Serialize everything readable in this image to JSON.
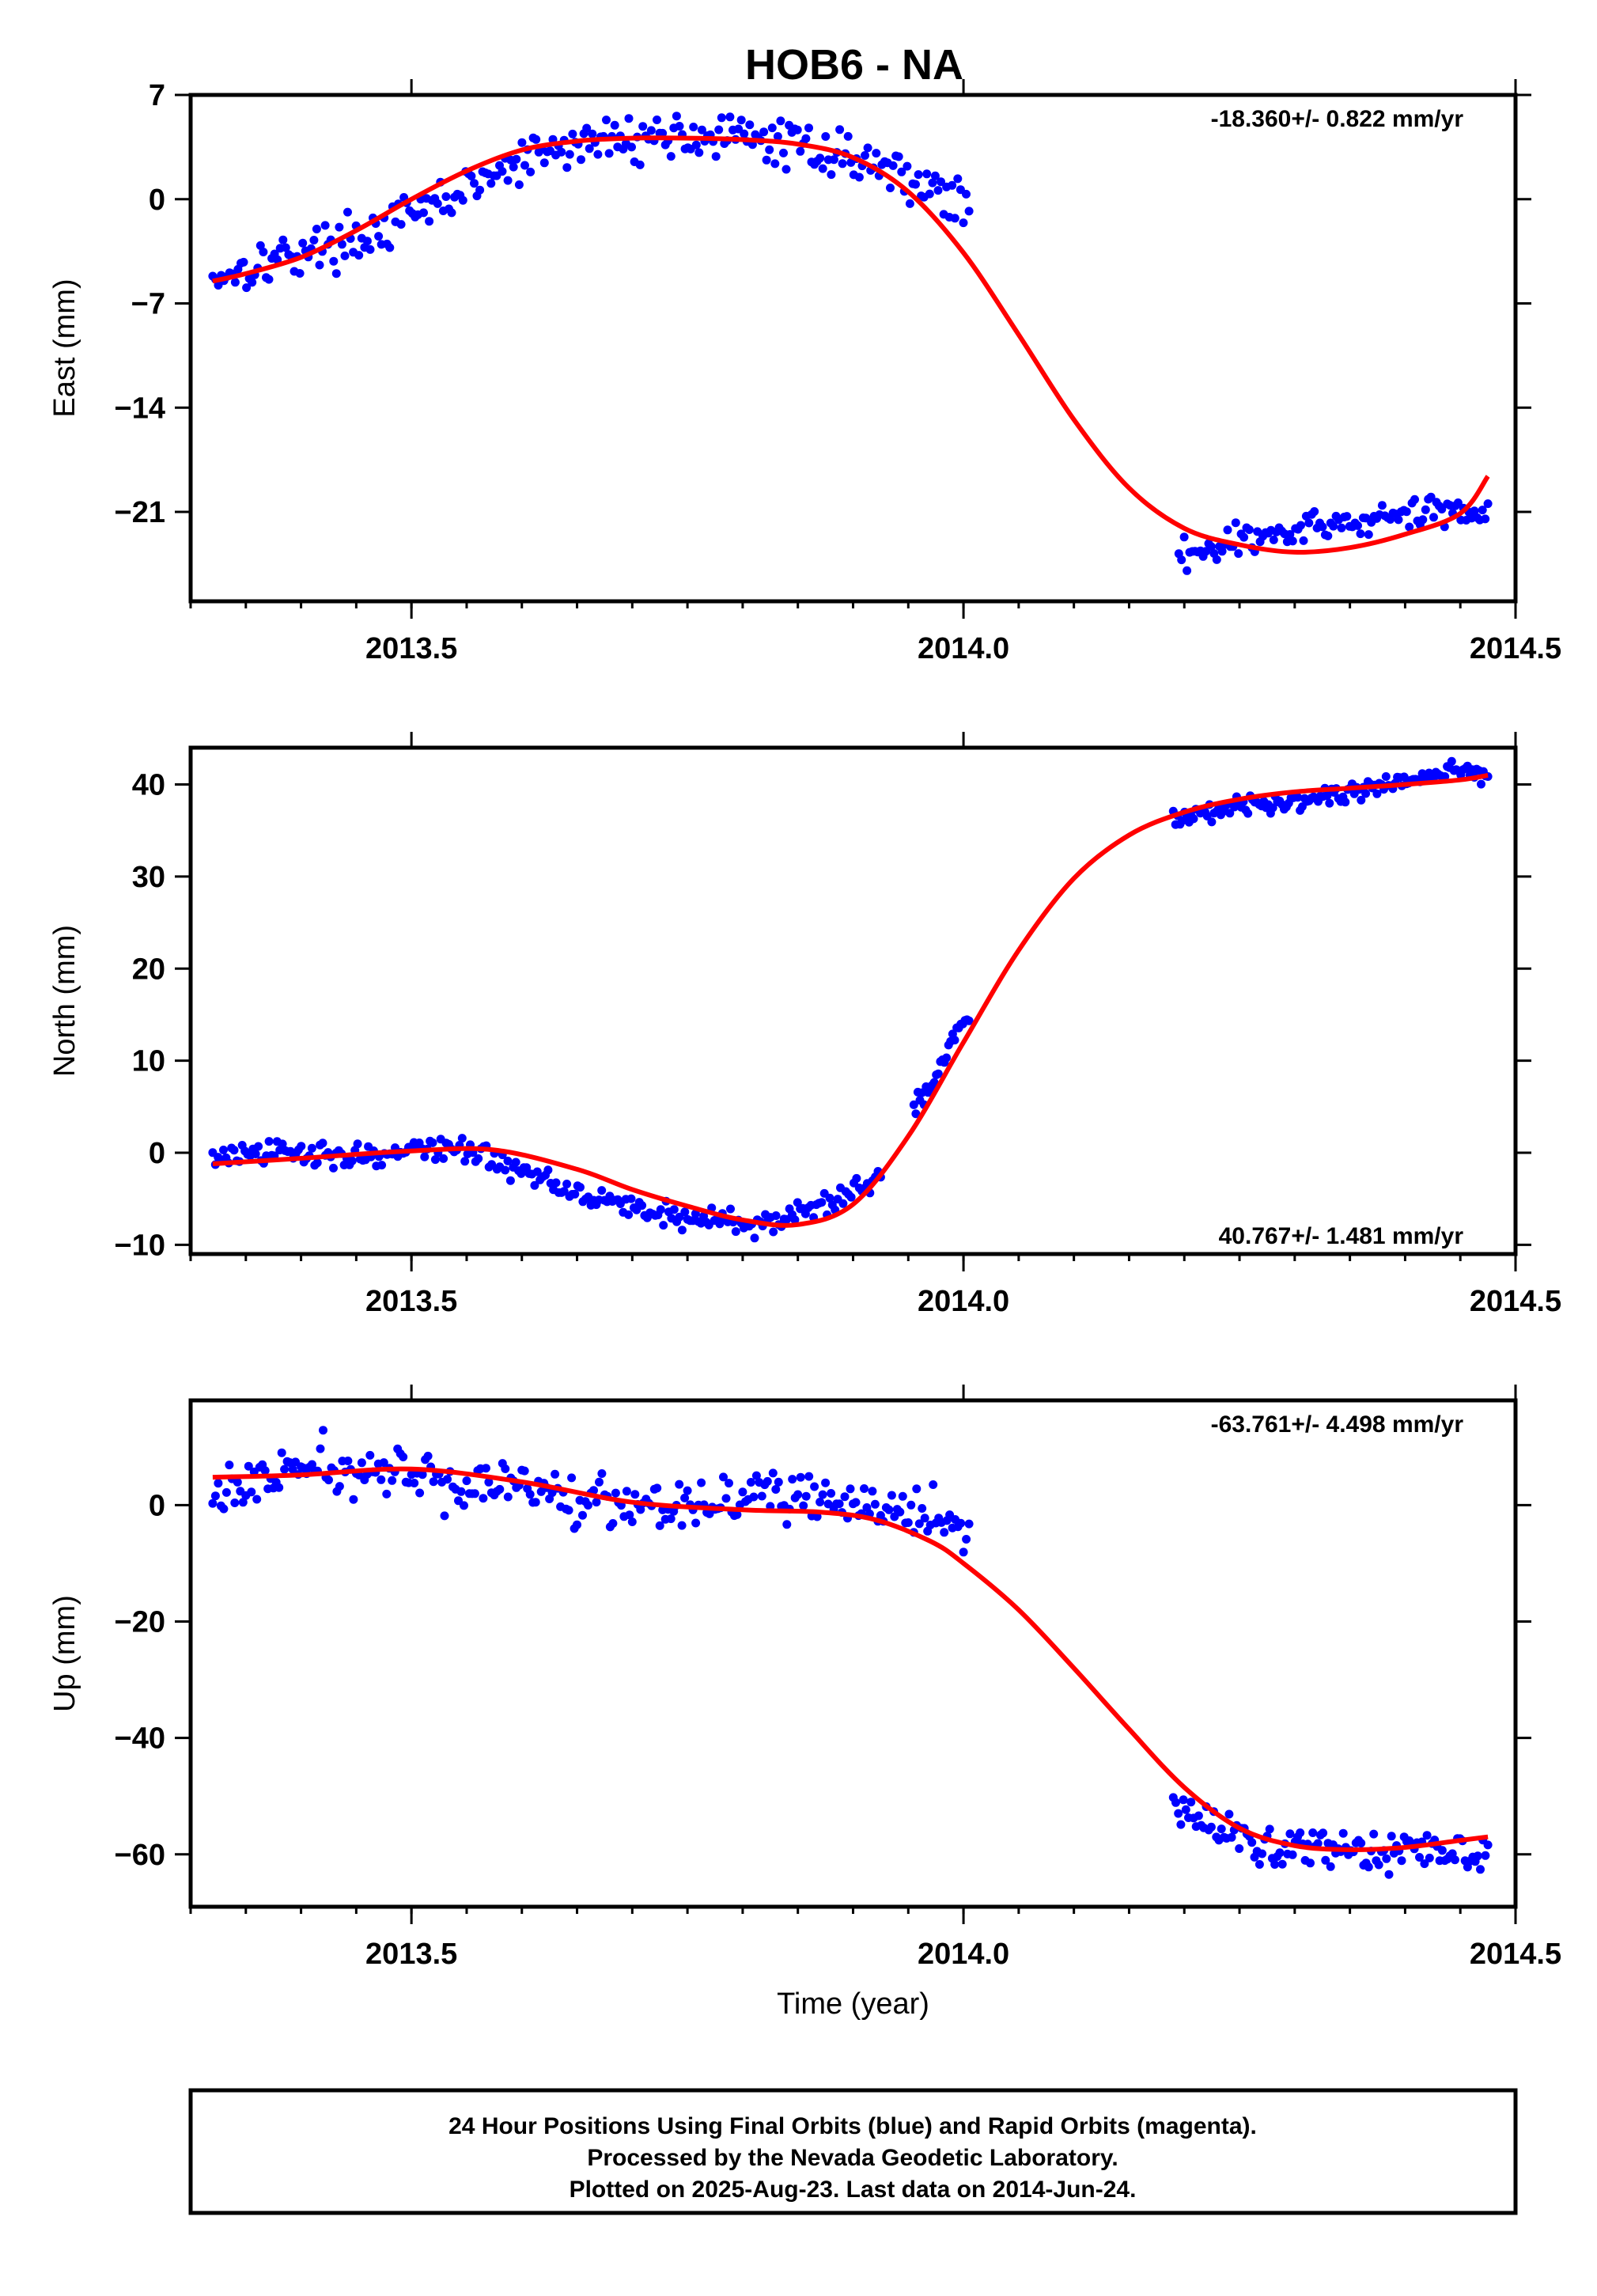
{
  "title": "HOB6 - NA",
  "footer": {
    "line1": "24 Hour Positions Using Final Orbits (blue) and Rapid Orbits (magenta).",
    "line2": "Processed by the Nevada Geodetic Laboratory.",
    "line3": "Plotted on 2025-Aug-23. Last data on 2014-Jun-24."
  },
  "colors": {
    "points": "#0000ff",
    "fit": "#ff0000",
    "axis": "#000000"
  },
  "chart_data": [
    {
      "type": "scatter",
      "ylabel": "East (mm)",
      "xlabel": "",
      "rate_label": "-18.360+/- 0.822 mm/yr",
      "xlim": [
        2013.3,
        2014.5
      ],
      "ylim": [
        -27,
        7
      ],
      "xticks": [
        2013.5,
        2014.0,
        2014.5
      ],
      "xtick_labels": [
        "2013.5",
        "2014.0",
        "2014.5"
      ],
      "yticks": [
        7,
        0,
        -7,
        -14,
        -21
      ],
      "ytick_labels": [
        "7",
        "0",
        "−7",
        "−14",
        "−21"
      ],
      "segments": [
        {
          "x0": 2013.32,
          "x1": 2014.005,
          "y": [
            -5.2,
            -4.5,
            -3.8,
            -3.2,
            -2.6,
            -1.8,
            -0.6,
            0.6,
            1.8,
            2.9,
            3.6,
            4.0,
            4.2,
            4.3,
            4.2,
            4.0,
            3.7,
            3.3,
            2.7,
            1.8,
            0.8,
            -0.8
          ],
          "jitter": 1.2,
          "count": 270
        },
        {
          "x0": 2014.195,
          "x1": 2014.475,
          "y": [
            -23.8,
            -23.3,
            -22.9,
            -22.6,
            -22.3,
            -21.9,
            -21.6,
            -21.4,
            -21.1,
            -20.8,
            -20.9
          ],
          "jitter": 0.9,
          "count": 115
        }
      ],
      "fit": {
        "x": [
          2013.32,
          2013.35,
          2013.4,
          2013.45,
          2013.5,
          2013.55,
          2013.6,
          2013.65,
          2013.7,
          2013.75,
          2013.8,
          2013.85,
          2013.9,
          2013.95,
          2014.0,
          2014.05,
          2014.1,
          2014.15,
          2014.2,
          2014.25,
          2014.3,
          2014.35,
          2014.4,
          2014.45,
          2014.475
        ],
        "y": [
          -5.5,
          -5.0,
          -3.9,
          -2.1,
          0.0,
          1.9,
          3.3,
          3.9,
          4.1,
          4.1,
          4.0,
          3.7,
          2.8,
          0.5,
          -3.6,
          -9.1,
          -14.8,
          -19.4,
          -22.1,
          -23.2,
          -23.7,
          -23.4,
          -22.5,
          -21.1,
          -18.6
        ]
      }
    },
    {
      "type": "scatter",
      "ylabel": "North (mm)",
      "xlabel": "",
      "rate_label": "40.767+/- 1.481 mm/yr",
      "xlim": [
        2013.3,
        2014.5
      ],
      "ylim": [
        -11,
        44
      ],
      "xticks": [
        2013.5,
        2014.0,
        2014.5
      ],
      "xtick_labels": [
        "2013.5",
        "2014.0",
        "2014.5"
      ],
      "yticks": [
        40,
        30,
        20,
        10,
        0,
        -10
      ],
      "ytick_labels": [
        "40",
        "30",
        "20",
        "10",
        "0",
        "−10"
      ],
      "segments": [
        {
          "x0": 2013.32,
          "x1": 2013.925,
          "y": [
            -0.5,
            -0.3,
            -0.1,
            0.0,
            -0.2,
            -0.3,
            0.0,
            0.6,
            0.4,
            -1.2,
            -2.3,
            -3.5,
            -4.7,
            -5.7,
            -6.6,
            -7.1,
            -7.4,
            -7.6,
            -7.3,
            -6.2,
            -4.2,
            -2.5
          ],
          "jitter": 1.1,
          "count": 250
        },
        {
          "x0": 2013.955,
          "x1": 2014.005,
          "y": [
            5.0,
            6.5,
            8.5,
            11.0,
            13.5,
            14.5
          ],
          "jitter": 0.8,
          "count": 28
        },
        {
          "x0": 2014.19,
          "x1": 2014.475,
          "y": [
            36.5,
            37.1,
            37.6,
            38.0,
            38.4,
            38.8,
            39.3,
            40.1,
            40.8,
            41.6,
            41.1
          ],
          "jitter": 0.8,
          "count": 140
        }
      ],
      "fit": {
        "x": [
          2013.32,
          2013.4,
          2013.5,
          2013.575,
          2013.65,
          2013.7,
          2013.75,
          2013.8,
          2013.85,
          2013.9,
          2013.95,
          2014.0,
          2014.05,
          2014.1,
          2014.15,
          2014.2,
          2014.25,
          2014.3,
          2014.35,
          2014.4,
          2014.45,
          2014.475
        ],
        "y": [
          -1.2,
          -0.6,
          0.2,
          0.3,
          -1.8,
          -4.0,
          -5.8,
          -7.3,
          -7.8,
          -5.6,
          1.8,
          12.0,
          22.0,
          29.8,
          34.5,
          37.0,
          38.4,
          39.2,
          39.6,
          40.0,
          40.5,
          41.0
        ]
      }
    },
    {
      "type": "scatter",
      "ylabel": "Up (mm)",
      "xlabel": "Time (year)",
      "rate_label": "-63.761+/- 4.498 mm/yr",
      "xlim": [
        2013.3,
        2014.5
      ],
      "ylim": [
        -69,
        18
      ],
      "xticks": [
        2013.5,
        2014.0,
        2014.5
      ],
      "xtick_labels": [
        "2013.5",
        "2014.0",
        "2014.5"
      ],
      "yticks": [
        0,
        -20,
        -40,
        -60
      ],
      "ytick_labels": [
        "0",
        "−20",
        "−40",
        "−60"
      ],
      "segments": [
        {
          "x0": 2013.32,
          "x1": 2014.005,
          "y": [
            1.5,
            3.5,
            5.5,
            6.5,
            6.0,
            5.0,
            4.5,
            4.0,
            3.5,
            2.5,
            1.5,
            1.0,
            0.5,
            0.5,
            1.0,
            2.0,
            1.5,
            0.5,
            -0.5,
            -1.0,
            -2.5,
            -4.0
          ],
          "jitter": 3.6,
          "count": 275
        },
        {
          "x0": 2014.19,
          "x1": 2014.475,
          "y": [
            -52.0,
            -55.0,
            -57.0,
            -58.5,
            -58.5,
            -59.0,
            -59.0,
            -59.5,
            -59.5,
            -59.0,
            -58.0
          ],
          "jitter": 2.6,
          "count": 125
        }
      ],
      "fit": {
        "x": [
          2013.32,
          2013.4,
          2013.5,
          2013.6,
          2013.7,
          2013.8,
          2013.87,
          2013.92,
          2013.97,
          2014.0,
          2014.05,
          2014.1,
          2014.15,
          2014.2,
          2014.25,
          2014.3,
          2014.35,
          2014.4,
          2014.45,
          2014.475
        ],
        "y": [
          4.8,
          5.2,
          6.2,
          4.0,
          0.5,
          -0.8,
          -1.2,
          -2.5,
          -6.2,
          -10.0,
          -18.0,
          -28.0,
          -38.5,
          -48.5,
          -55.5,
          -58.5,
          -59.2,
          -58.8,
          -57.6,
          -57.0
        ]
      }
    }
  ]
}
